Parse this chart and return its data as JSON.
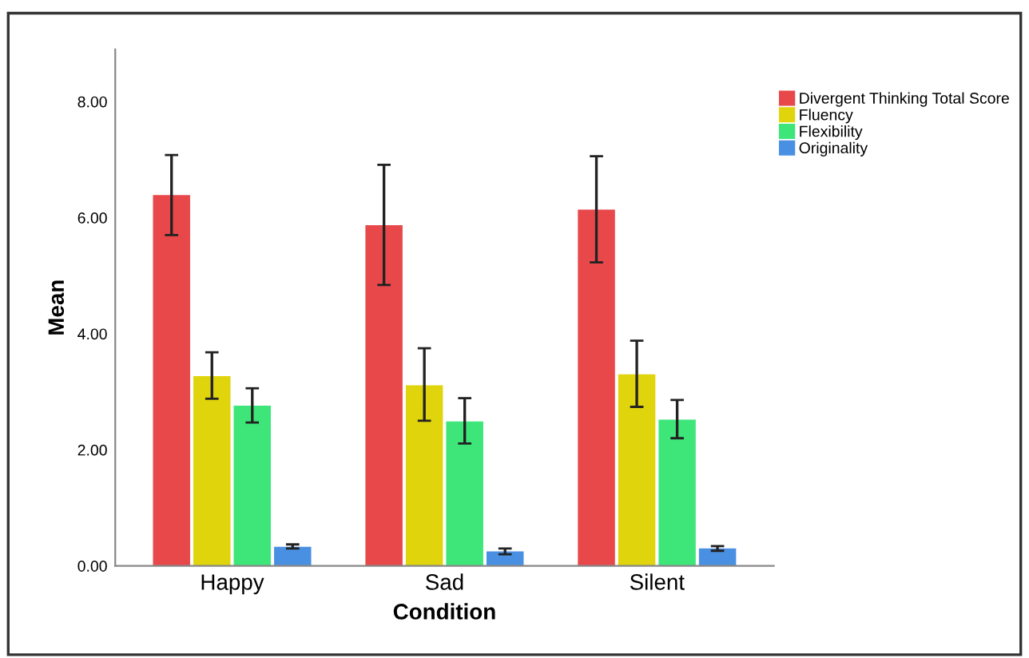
{
  "chart_data": {
    "type": "bar",
    "xlabel": "Condition",
    "ylabel": "Mean",
    "categories": [
      "Happy",
      "Sad",
      "Silent"
    ],
    "series": [
      {
        "name": "Divergent Thinking Total Score",
        "color": "#e8484a",
        "values": [
          6.39,
          5.87,
          6.14
        ],
        "errors": [
          [
            5.7,
            7.08
          ],
          [
            4.84,
            6.91
          ],
          [
            5.23,
            7.06
          ]
        ]
      },
      {
        "name": "Fluency",
        "color": "#e0d40c",
        "values": [
          3.27,
          3.11,
          3.3
        ],
        "errors": [
          [
            2.88,
            3.68
          ],
          [
            2.5,
            3.75
          ],
          [
            2.74,
            3.88
          ]
        ]
      },
      {
        "name": "Flexibility",
        "color": "#3ee67a",
        "values": [
          2.76,
          2.49,
          2.52
        ],
        "errors": [
          [
            2.47,
            3.06
          ],
          [
            2.11,
            2.89
          ],
          [
            2.2,
            2.86
          ]
        ]
      },
      {
        "name": "Originality",
        "color": "#4a90e2",
        "values": [
          0.33,
          0.25,
          0.3
        ],
        "errors": [
          [
            0.3,
            0.37
          ],
          [
            0.2,
            0.3
          ],
          [
            0.26,
            0.34
          ]
        ]
      }
    ],
    "ylim": [
      0,
      8.9
    ],
    "yticks": [
      {
        "value": 0,
        "label": "0.00"
      },
      {
        "value": 2,
        "label": "2.00"
      },
      {
        "value": 4,
        "label": "4.00"
      },
      {
        "value": 6,
        "label": "6.00"
      },
      {
        "value": 8,
        "label": "8.00"
      }
    ],
    "grid": false,
    "legend": "top right"
  }
}
